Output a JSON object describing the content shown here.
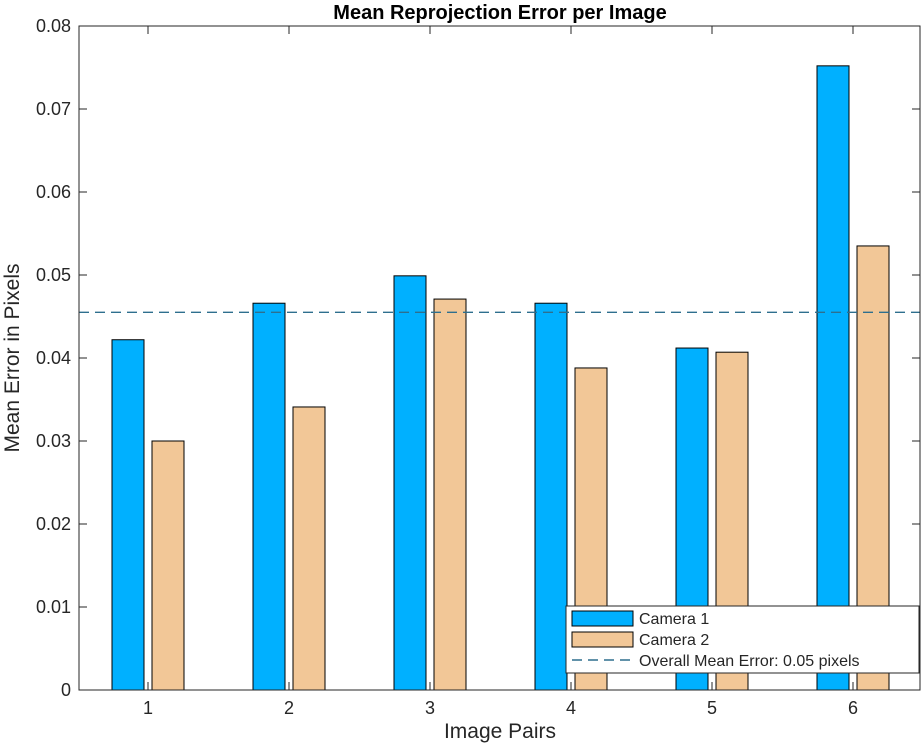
{
  "chart_data": {
    "type": "bar",
    "title": "Mean Reprojection Error per Image",
    "xlabel": "Image Pairs",
    "ylabel": "Mean Error in Pixels",
    "categories": [
      "1",
      "2",
      "3",
      "4",
      "5",
      "6"
    ],
    "ylim": [
      0,
      0.08
    ],
    "yticks": [
      0,
      0.01,
      0.02,
      0.03,
      0.04,
      0.05,
      0.06,
      0.07,
      0.08
    ],
    "ytick_labels": [
      "0",
      "0.01",
      "0.02",
      "0.03",
      "0.04",
      "0.05",
      "0.06",
      "0.07",
      "0.08"
    ],
    "series": [
      {
        "name": "Camera 1",
        "color": "#00B0FF",
        "values": [
          0.0422,
          0.0466,
          0.0499,
          0.0466,
          0.0412,
          0.0752
        ]
      },
      {
        "name": "Camera 2",
        "color": "#F2C797",
        "values": [
          0.03,
          0.0341,
          0.0471,
          0.0388,
          0.0407,
          0.0535
        ]
      }
    ],
    "reference_line": {
      "label": "Overall Mean Error: 0.05 pixels",
      "value": 0.0455,
      "color": "#2E6F8E",
      "style": "dashed"
    },
    "legend_position": "bottom-right",
    "grid": false
  }
}
